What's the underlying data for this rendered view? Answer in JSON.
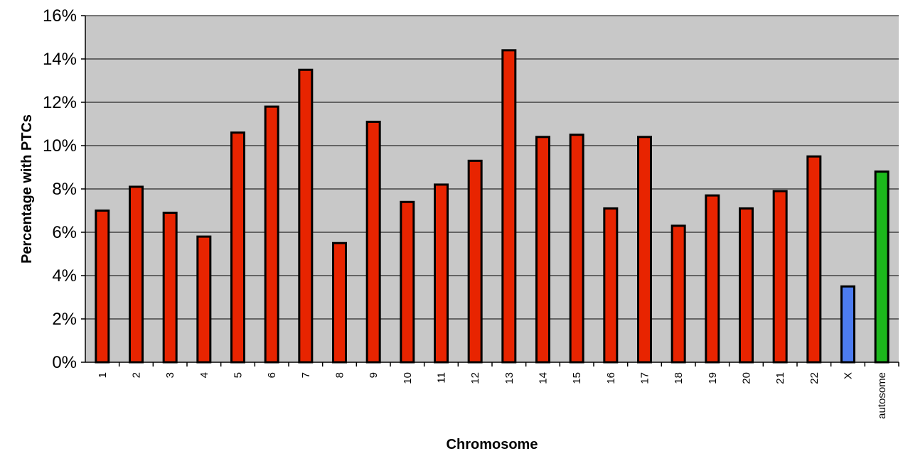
{
  "chart_data": {
    "type": "bar",
    "title": "",
    "xlabel": "Chromosome",
    "ylabel": "Percentage with PTCs",
    "ylim": [
      0,
      0.16
    ],
    "yticks": [
      0,
      0.02,
      0.04,
      0.06,
      0.08,
      0.1,
      0.12,
      0.14,
      0.16
    ],
    "ytick_labels": [
      "0%",
      "2%",
      "4%",
      "6%",
      "8%",
      "10%",
      "12%",
      "14%",
      "16%"
    ],
    "grid": true,
    "legend": "none",
    "categories": [
      "1",
      "2",
      "3",
      "4",
      "5",
      "6",
      "7",
      "8",
      "9",
      "10",
      "11",
      "12",
      "13",
      "14",
      "15",
      "16",
      "17",
      "18",
      "19",
      "20",
      "21",
      "22",
      "X",
      "autosome"
    ],
    "values": [
      0.07,
      0.081,
      0.069,
      0.058,
      0.106,
      0.118,
      0.135,
      0.055,
      0.111,
      0.074,
      0.082,
      0.093,
      0.144,
      0.104,
      0.105,
      0.071,
      0.104,
      0.063,
      0.077,
      0.071,
      0.079,
      0.095,
      0.035,
      0.088
    ],
    "colors": {
      "default": "#E82400",
      "X": "#4C7CF0",
      "autosome": "#1CB81C",
      "plot_background": "#C8C8C8",
      "gridline": "#000000",
      "bar_outline": "#000000"
    }
  }
}
